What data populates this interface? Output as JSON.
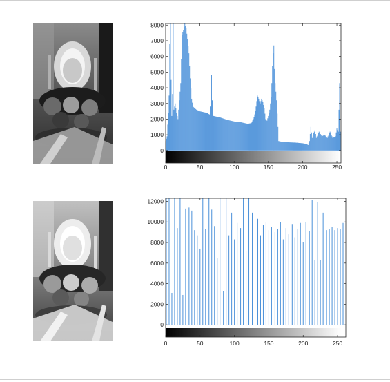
{
  "chart_data": [
    {
      "type": "bar",
      "subtype": "histogram",
      "title": "",
      "xlabel": "",
      "ylabel": "",
      "xlim": [
        0,
        256
      ],
      "ylim": [
        -800,
        8100
      ],
      "xticks": [
        0,
        50,
        100,
        150,
        200,
        250
      ],
      "yticks": [
        0,
        1000,
        2000,
        3000,
        4000,
        5000,
        6000,
        7000,
        8000
      ],
      "bar_color": "#4a90d9",
      "colorbar": "grayscale 0-255",
      "profile": [
        [
          0,
          600
        ],
        [
          2,
          900
        ],
        [
          4,
          2400
        ],
        [
          5,
          3500
        ],
        [
          6,
          6800
        ],
        [
          7,
          8100
        ],
        [
          8,
          4500
        ],
        [
          9,
          2200
        ],
        [
          10,
          3600
        ],
        [
          11,
          8100
        ],
        [
          12,
          2600
        ],
        [
          14,
          3000
        ],
        [
          16,
          2400
        ],
        [
          18,
          2000
        ],
        [
          20,
          3200
        ],
        [
          22,
          4300
        ],
        [
          24,
          7400
        ],
        [
          26,
          7700
        ],
        [
          28,
          8100
        ],
        [
          30,
          7800
        ],
        [
          32,
          7100
        ],
        [
          34,
          6200
        ],
        [
          36,
          4600
        ],
        [
          38,
          3300
        ],
        [
          40,
          2800
        ],
        [
          45,
          2600
        ],
        [
          50,
          2500
        ],
        [
          55,
          2450
        ],
        [
          60,
          2400
        ],
        [
          64,
          2300
        ],
        [
          65,
          2800
        ],
        [
          66,
          3600
        ],
        [
          67,
          4800
        ],
        [
          68,
          3200
        ],
        [
          70,
          2200
        ],
        [
          80,
          2100
        ],
        [
          90,
          1950
        ],
        [
          100,
          1850
        ],
        [
          110,
          1800
        ],
        [
          120,
          1700
        ],
        [
          125,
          1750
        ],
        [
          128,
          2000
        ],
        [
          130,
          2300
        ],
        [
          132,
          2800
        ],
        [
          134,
          3500
        ],
        [
          136,
          3300
        ],
        [
          138,
          3000
        ],
        [
          140,
          3300
        ],
        [
          142,
          3100
        ],
        [
          144,
          2700
        ],
        [
          146,
          2000
        ],
        [
          148,
          1900
        ],
        [
          150,
          2200
        ],
        [
          152,
          2600
        ],
        [
          154,
          3400
        ],
        [
          155,
          4300
        ],
        [
          156,
          5400
        ],
        [
          157,
          6200
        ],
        [
          158,
          6700
        ],
        [
          159,
          5200
        ],
        [
          160,
          4300
        ],
        [
          162,
          3200
        ],
        [
          164,
          1500
        ],
        [
          165,
          600
        ],
        [
          170,
          550
        ],
        [
          180,
          520
        ],
        [
          190,
          500
        ],
        [
          200,
          460
        ],
        [
          205,
          420
        ],
        [
          208,
          350
        ],
        [
          210,
          600
        ],
        [
          212,
          1500
        ],
        [
          214,
          800
        ],
        [
          216,
          1100
        ],
        [
          218,
          1300
        ],
        [
          220,
          800
        ],
        [
          224,
          1200
        ],
        [
          228,
          900
        ],
        [
          232,
          1000
        ],
        [
          236,
          800
        ],
        [
          240,
          1200
        ],
        [
          244,
          800
        ],
        [
          248,
          900
        ],
        [
          250,
          1400
        ],
        [
          252,
          1200
        ],
        [
          253,
          2600
        ],
        [
          254,
          4300
        ],
        [
          255,
          1200
        ]
      ]
    },
    {
      "type": "bar",
      "subtype": "histogram",
      "title": "",
      "xlabel": "",
      "ylabel": "",
      "xlim": [
        0,
        262
      ],
      "ylim": [
        -1200,
        12300
      ],
      "xticks": [
        0,
        50,
        100,
        150,
        200,
        250
      ],
      "yticks": [
        0,
        2000,
        4000,
        6000,
        8000,
        10000,
        12000
      ],
      "bar_color": "#4a90d9",
      "colorbar": "grayscale 0-255",
      "x": [
        1,
        5,
        9,
        13,
        17,
        21,
        25,
        29,
        34,
        38,
        42,
        46,
        50,
        54,
        58,
        63,
        67,
        71,
        75,
        79,
        84,
        88,
        92,
        96,
        100,
        104,
        109,
        113,
        117,
        121,
        126,
        130,
        134,
        138,
        142,
        146,
        150,
        154,
        159,
        163,
        167,
        171,
        175,
        179,
        184,
        188,
        192,
        196,
        200,
        204,
        209,
        213,
        217,
        221,
        225,
        229,
        234,
        238,
        242,
        246,
        250,
        254,
        258
      ],
      "values": [
        12300,
        12300,
        3100,
        12300,
        9400,
        12300,
        2900,
        11300,
        11400,
        11100,
        9200,
        8700,
        7400,
        12300,
        9300,
        12300,
        11200,
        9600,
        6500,
        12300,
        3300,
        12300,
        8700,
        10900,
        8300,
        9900,
        9400,
        12300,
        7200,
        12300,
        10900,
        9100,
        10300,
        8700,
        9700,
        10000,
        9200,
        9500,
        9000,
        9300,
        10000,
        8300,
        9400,
        8800,
        9800,
        8500,
        9300,
        9900,
        8000,
        10000,
        9100,
        12100,
        6300,
        11900,
        6300,
        10900,
        9200,
        9300,
        9500,
        9200,
        9400,
        9300,
        9900
      ]
    }
  ]
}
